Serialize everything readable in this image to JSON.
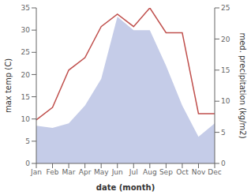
{
  "chart_data": {
    "type": "area",
    "xlabel": "date (month)",
    "ylabel": "max temp (C)",
    "y2label": "med. precipitation (kg/m2)",
    "categories": [
      "Jan",
      "Feb",
      "Mar",
      "Apr",
      "May",
      "Jun",
      "Jul",
      "Aug",
      "Sep",
      "Oct",
      "Nov",
      "Dec"
    ],
    "series": [
      {
        "type": "area",
        "color": "#c5cce8",
        "values": [
          8.5,
          8.0,
          9.0,
          13.0,
          19.0,
          33.0,
          30.0,
          30.0,
          22.0,
          13.0,
          6.0,
          9.0
        ]
      },
      {
        "type": "line",
        "axis": "y2",
        "color": "#c0504d",
        "values": [
          7.0,
          9.0,
          15.0,
          17.0,
          22.0,
          24.0,
          22.0,
          25.0,
          21.0,
          21.0,
          8.0,
          8.0
        ]
      }
    ],
    "ylim": [
      0,
      35
    ],
    "yticks": [
      0,
      5,
      10,
      15,
      20,
      25,
      30,
      35
    ],
    "y2lim": [
      0,
      25
    ],
    "y2ticks": [
      0,
      5,
      10,
      15,
      20,
      25
    ],
    "grid": false
  }
}
